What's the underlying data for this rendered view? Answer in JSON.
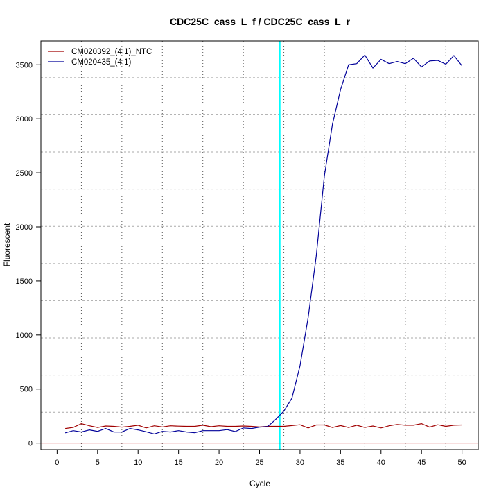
{
  "chart_data": {
    "type": "line",
    "title": "CDC25C_cass_L_f / CDC25C_cass_L_r",
    "xlabel": "Cycle",
    "ylabel": "Fluorescent",
    "xlim": [
      -2,
      52
    ],
    "ylim": [
      -60,
      3720
    ],
    "x_ticks": [
      0,
      5,
      10,
      15,
      20,
      25,
      30,
      35,
      40,
      45,
      50
    ],
    "y_ticks": [
      0,
      500,
      1000,
      1500,
      2000,
      2500,
      3000,
      3500
    ],
    "grid": true,
    "grid_x": [
      3,
      8,
      13,
      18,
      23,
      28,
      33,
      38,
      43,
      48
    ],
    "grid_y": [
      285,
      629,
      973,
      1317,
      1661,
      2005,
      2349,
      2693,
      3037,
      3381
    ],
    "legend_position": "top-left",
    "threshold_cycle": 27.5,
    "threshold_color": "#00ffff",
    "baseline_value": 0,
    "baseline_color": "#cc0000",
    "x": [
      1,
      2,
      3,
      4,
      5,
      6,
      7,
      8,
      9,
      10,
      11,
      12,
      13,
      14,
      15,
      16,
      17,
      18,
      19,
      20,
      21,
      22,
      23,
      24,
      25,
      26,
      27,
      28,
      29,
      30,
      31,
      32,
      33,
      34,
      35,
      36,
      37,
      38,
      39,
      40,
      41,
      42,
      43,
      44,
      45,
      46,
      47,
      48,
      49,
      50
    ],
    "series": [
      {
        "name": "CM020392_(4:1)_NTC",
        "color": "#a00000",
        "values": [
          135,
          145,
          180,
          160,
          145,
          158,
          155,
          148,
          155,
          165,
          140,
          160,
          150,
          160,
          157,
          155,
          155,
          165,
          152,
          160,
          155,
          155,
          158,
          155,
          150,
          155,
          155,
          155,
          162,
          170,
          140,
          168,
          168,
          145,
          162,
          145,
          165,
          145,
          158,
          140,
          160,
          172,
          165,
          165,
          180,
          148,
          170,
          155,
          165,
          168
        ]
      },
      {
        "name": "CM020435_(4:1)",
        "color": "#000099",
        "values": [
          95,
          115,
          103,
          122,
          109,
          135,
          103,
          103,
          135,
          122,
          105,
          85,
          109,
          103,
          115,
          103,
          96,
          115,
          115,
          115,
          125,
          107,
          140,
          135,
          148,
          153,
          220,
          296,
          415,
          715,
          1160,
          1730,
          2470,
          2950,
          3270,
          3500,
          3510,
          3590,
          3470,
          3550,
          3510,
          3530,
          3510,
          3560,
          3480,
          3535,
          3540,
          3505,
          3585,
          3490
        ]
      }
    ]
  }
}
